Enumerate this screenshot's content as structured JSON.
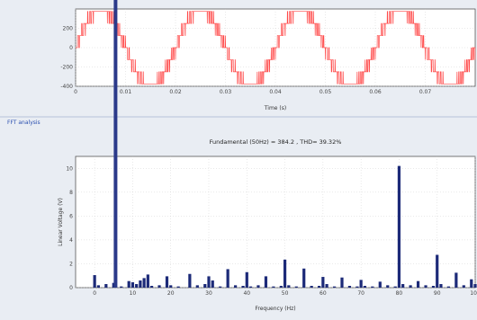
{
  "colors": {
    "background": "#e9edf3",
    "plot_bg": "#ffffff",
    "waveform": "#ff4b4b",
    "bars": "#1c2a78",
    "cursor": "#2b3a8a",
    "grid": "#c8c8c8"
  },
  "analysis_label": "FFT analysis",
  "chart_data": [
    {
      "type": "line",
      "xlabel": "Time (s)",
      "ylabel": "",
      "xlim": [
        0,
        0.08
      ],
      "ylim": [
        -400,
        400
      ],
      "xticks": [
        {
          "value": 0,
          "label": "0"
        },
        {
          "value": 0.01,
          "label": "0.01"
        },
        {
          "value": 0.02,
          "label": "0.02"
        },
        {
          "value": 0.03,
          "label": "0.03"
        },
        {
          "value": 0.04,
          "label": "0.04"
        },
        {
          "value": 0.05,
          "label": "0.05"
        },
        {
          "value": 0.06,
          "label": "0.06"
        },
        {
          "value": 0.07,
          "label": "0.07"
        }
      ],
      "yticks": [
        {
          "value": 200,
          "label": "200"
        },
        {
          "value": 0,
          "label": "0"
        },
        {
          "value": -200,
          "label": "-200"
        },
        {
          "value": -400,
          "label": "-400"
        }
      ],
      "grid": true,
      "series": [
        {
          "frequency_hz": 50,
          "levels": [
            0,
            125,
            250,
            375
          ],
          "pwm_switching": true
        }
      ],
      "cursor_x": 0.008
    },
    {
      "type": "bar",
      "title": "Fundamental (50Hz) = 384.2 , THD= 39.32%",
      "xlabel": "Frequency (Hz)",
      "ylabel": "Linear Voltage (V)",
      "xlim": [
        -5,
        100
      ],
      "ylim": [
        0,
        11
      ],
      "xticks": [
        0,
        10,
        20,
        30,
        40,
        50,
        60,
        70,
        80,
        90,
        100
      ],
      "yticks": [
        0,
        2,
        4,
        6,
        8,
        10
      ],
      "grid": true,
      "x": [
        0,
        1,
        3,
        5,
        7,
        9,
        10,
        11,
        12,
        13,
        14,
        15,
        17,
        19,
        20,
        22,
        25,
        27,
        29,
        30,
        31,
        33,
        35,
        37,
        39,
        40,
        41,
        43,
        45,
        47,
        49,
        50,
        51,
        53,
        55,
        57,
        59,
        60,
        61,
        63,
        65,
        67,
        69,
        70,
        71,
        73,
        75,
        77,
        79,
        80,
        81,
        83,
        85,
        87,
        89,
        90,
        91,
        93,
        95,
        97,
        99,
        100
      ],
      "values": [
        1.05,
        0.2,
        0.3,
        0.4,
        0.1,
        0.55,
        0.45,
        0.3,
        0.6,
        0.8,
        1.1,
        0.15,
        0.2,
        0.95,
        0.2,
        0.1,
        1.15,
        0.2,
        0.3,
        0.95,
        0.6,
        0.1,
        1.55,
        0.2,
        0.15,
        1.3,
        0.1,
        0.2,
        0.95,
        0.1,
        0.15,
        2.35,
        0.2,
        0.1,
        1.6,
        0.15,
        0.15,
        0.9,
        0.3,
        0.1,
        0.85,
        0.15,
        0.1,
        0.65,
        0.15,
        0.1,
        0.5,
        0.2,
        0.1,
        10.2,
        0.3,
        0.2,
        0.55,
        0.2,
        0.15,
        2.75,
        0.3,
        0.1,
        1.25,
        0.2,
        0.7,
        0.3
      ]
    }
  ]
}
